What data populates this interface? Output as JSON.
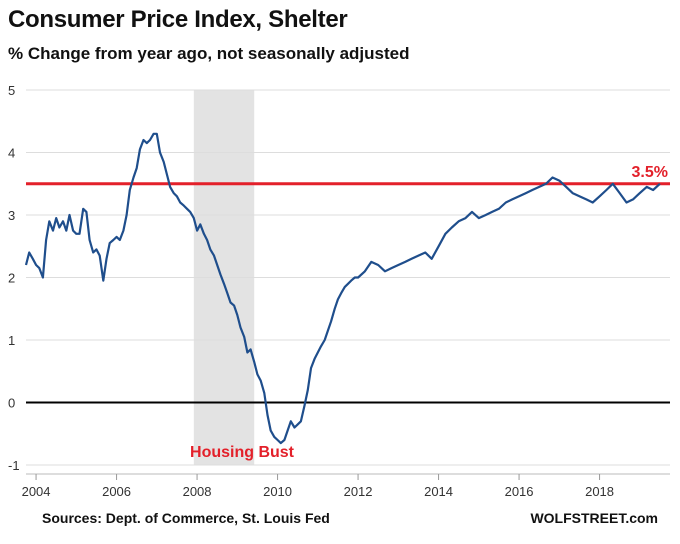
{
  "header": {
    "title": "Consumer Price Index, Shelter",
    "subtitle": "% Change from year ago, not seasonally adjusted"
  },
  "footer": {
    "sources": "Sources: Dept. of Commerce, St. Louis Fed",
    "brand": "WOLFSTREET.com"
  },
  "chart_data": {
    "type": "line",
    "title": "Consumer Price Index, Shelter",
    "subtitle": "% Change from year ago, not seasonally adjusted",
    "xlabel": "",
    "ylabel": "",
    "xlim": [
      2003.75,
      2019.75
    ],
    "ylim": [
      -1,
      5
    ],
    "x_ticks": [
      2004,
      2006,
      2008,
      2010,
      2012,
      2014,
      2016,
      2018
    ],
    "x_tick_labels": [
      "2004",
      "2006",
      "2008",
      "2010",
      "2012",
      "2014",
      "2016",
      "2018"
    ],
    "y_ticks": [
      -1,
      0,
      1,
      2,
      3,
      4,
      5
    ],
    "y_tick_labels": [
      "-1",
      "0",
      "1",
      "2",
      "3",
      "4",
      "5"
    ],
    "grid": "horizontal",
    "line_color": "#1f4e8c",
    "reference_line": {
      "value": 3.5,
      "label": "3.5%",
      "color": "#e3202a"
    },
    "zero_line_color": "#000000",
    "shaded_period": {
      "start": 2007.92,
      "end": 2009.42,
      "label": "Housing Bust",
      "color": "#e3e3e3",
      "label_color": "#e3202a"
    },
    "series": [
      {
        "x": [
          2003.75,
          2003.83,
          2003.92,
          2004.0,
          2004.08,
          2004.17,
          2004.25,
          2004.33,
          2004.42,
          2004.5,
          2004.58,
          2004.67,
          2004.75,
          2004.83,
          2004.92,
          2005.0,
          2005.08,
          2005.17,
          2005.25,
          2005.33,
          2005.42,
          2005.5,
          2005.58,
          2005.67,
          2005.75,
          2005.83,
          2005.92,
          2006.0,
          2006.08,
          2006.17,
          2006.25,
          2006.33,
          2006.42,
          2006.5,
          2006.58,
          2006.67,
          2006.75,
          2006.83,
          2006.92,
          2007.0,
          2007.08,
          2007.17,
          2007.25,
          2007.33,
          2007.42,
          2007.5,
          2007.58,
          2007.67,
          2007.75,
          2007.83,
          2007.92,
          2008.0,
          2008.08,
          2008.17,
          2008.25,
          2008.33,
          2008.42,
          2008.5,
          2008.58,
          2008.67,
          2008.75,
          2008.83,
          2008.92,
          2009.0,
          2009.08,
          2009.17,
          2009.25,
          2009.33,
          2009.42,
          2009.5,
          2009.58,
          2009.67,
          2009.75,
          2009.83,
          2009.92,
          2010.0,
          2010.08,
          2010.17,
          2010.25,
          2010.33,
          2010.42,
          2010.5,
          2010.58,
          2010.67,
          2010.75,
          2010.83,
          2010.92,
          2011.0,
          2011.08,
          2011.17,
          2011.25,
          2011.33,
          2011.42,
          2011.5,
          2011.58,
          2011.67,
          2011.75,
          2011.83,
          2011.92,
          2012.0,
          2012.17,
          2012.33,
          2012.5,
          2012.67,
          2012.83,
          2013.0,
          2013.17,
          2013.33,
          2013.5,
          2013.67,
          2013.83,
          2014.0,
          2014.17,
          2014.33,
          2014.5,
          2014.67,
          2014.83,
          2015.0,
          2015.17,
          2015.33,
          2015.5,
          2015.67,
          2015.83,
          2016.0,
          2016.17,
          2016.33,
          2016.5,
          2016.67,
          2016.83,
          2017.0,
          2017.17,
          2017.33,
          2017.5,
          2017.67,
          2017.83,
          2018.0,
          2018.17,
          2018.33,
          2018.5,
          2018.67,
          2018.83,
          2019.0,
          2019.17,
          2019.33,
          2019.5
        ],
        "values": [
          2.2,
          2.4,
          2.3,
          2.2,
          2.15,
          2.0,
          2.6,
          2.9,
          2.75,
          2.95,
          2.8,
          2.9,
          2.75,
          3.0,
          2.75,
          2.7,
          2.7,
          3.1,
          3.05,
          2.6,
          2.4,
          2.45,
          2.35,
          1.95,
          2.3,
          2.55,
          2.6,
          2.65,
          2.6,
          2.75,
          3.0,
          3.4,
          3.6,
          3.75,
          4.05,
          4.2,
          4.15,
          4.2,
          4.3,
          4.3,
          4.0,
          3.85,
          3.65,
          3.45,
          3.35,
          3.3,
          3.2,
          3.15,
          3.1,
          3.05,
          2.95,
          2.75,
          2.85,
          2.7,
          2.6,
          2.45,
          2.35,
          2.2,
          2.05,
          1.9,
          1.75,
          1.6,
          1.55,
          1.4,
          1.2,
          1.05,
          0.8,
          0.85,
          0.65,
          0.45,
          0.35,
          0.15,
          -0.2,
          -0.45,
          -0.55,
          -0.6,
          -0.65,
          -0.6,
          -0.45,
          -0.3,
          -0.4,
          -0.35,
          -0.3,
          -0.05,
          0.2,
          0.55,
          0.7,
          0.8,
          0.9,
          1.0,
          1.15,
          1.3,
          1.5,
          1.65,
          1.75,
          1.85,
          1.9,
          1.95,
          2.0,
          2.0,
          2.1,
          2.25,
          2.2,
          2.1,
          2.15,
          2.2,
          2.25,
          2.3,
          2.35,
          2.4,
          2.3,
          2.5,
          2.7,
          2.8,
          2.9,
          2.95,
          3.05,
          2.95,
          3.0,
          3.05,
          3.1,
          3.2,
          3.25,
          3.3,
          3.35,
          3.4,
          3.45,
          3.5,
          3.6,
          3.55,
          3.45,
          3.35,
          3.3,
          3.25,
          3.2,
          3.3,
          3.4,
          3.5,
          3.35,
          3.2,
          3.25,
          3.35,
          3.45,
          3.4,
          3.5
        ]
      }
    ]
  }
}
